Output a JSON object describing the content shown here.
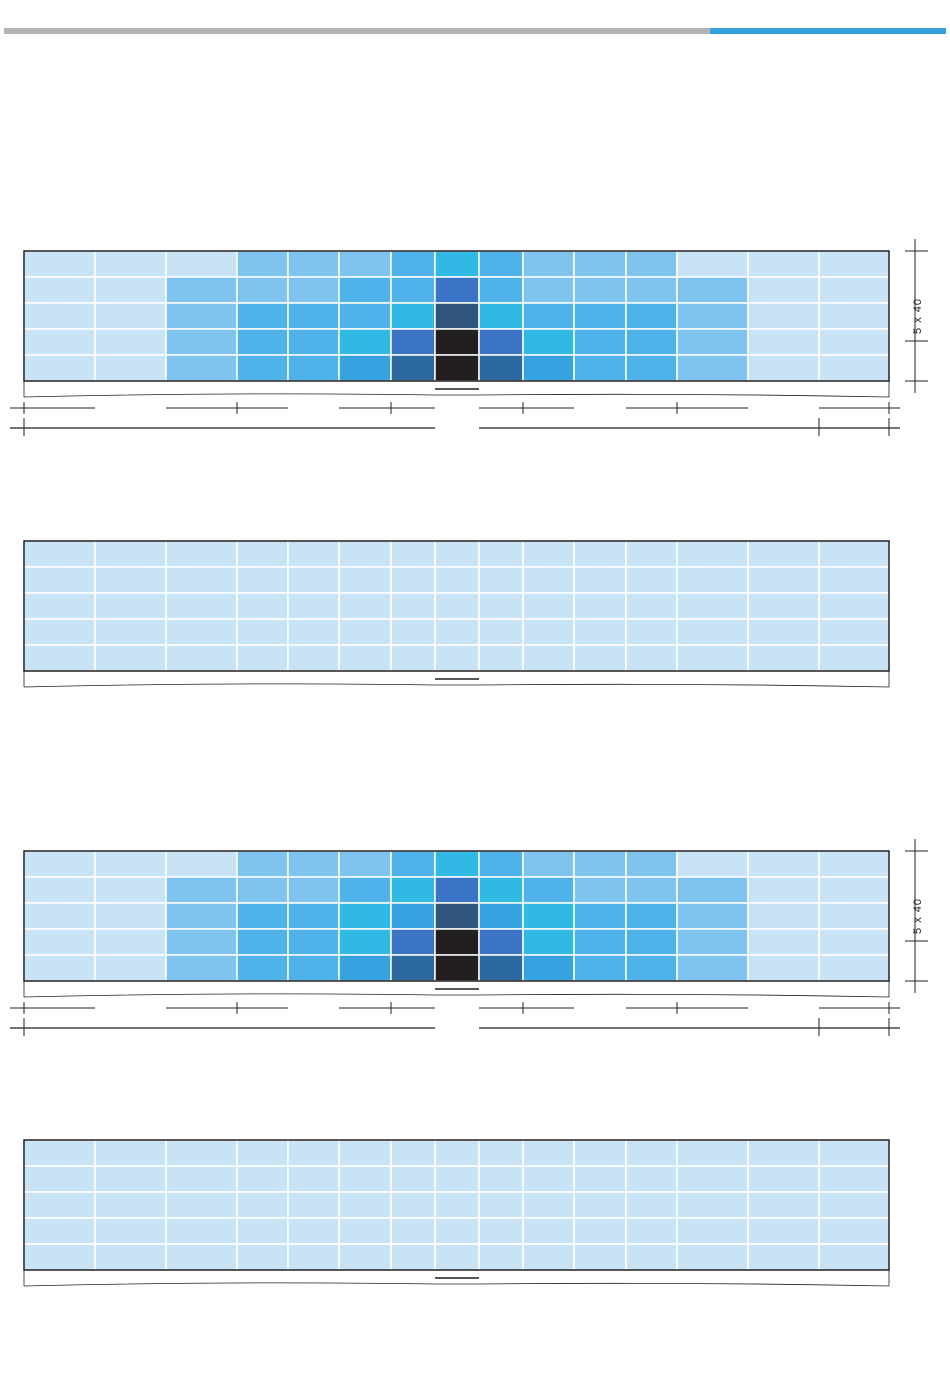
{
  "dimensions": [
    {
      "label": "5 x 40"
    },
    {
      "label": "5 x 40"
    }
  ]
}
